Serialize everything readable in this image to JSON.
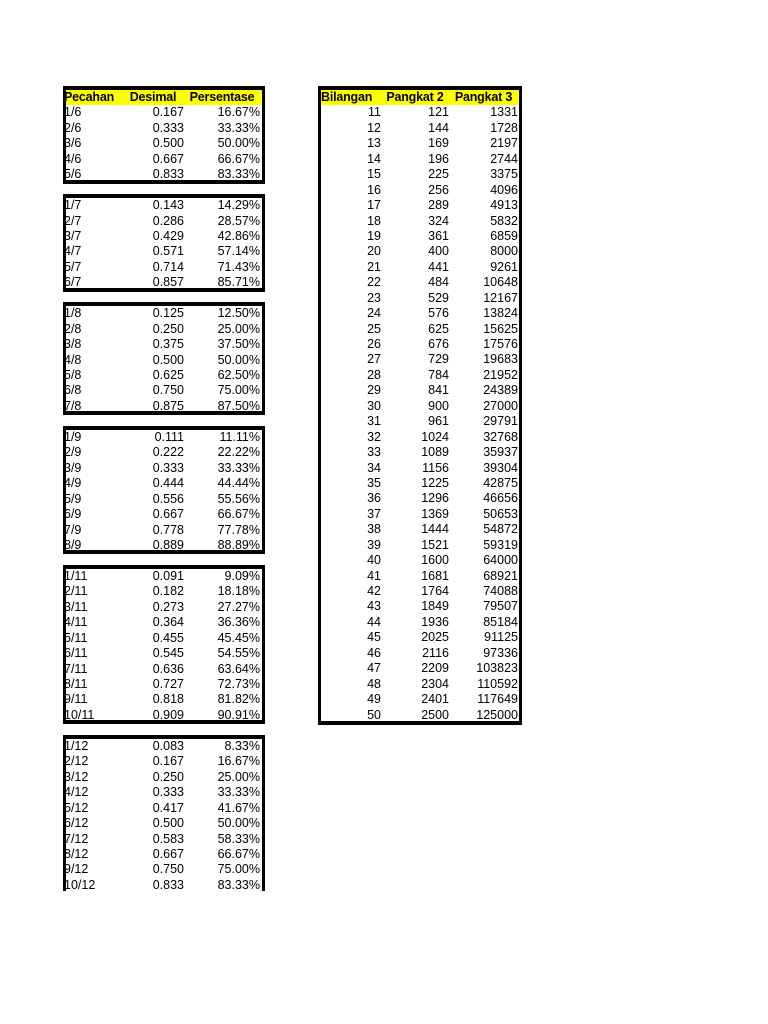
{
  "left_table": {
    "headers": [
      "Pecahan",
      "Desimal",
      "Persentase"
    ],
    "blocks": [
      {
        "rows": [
          [
            "1/6",
            "0.167",
            "16.67%"
          ],
          [
            "2/6",
            "0.333",
            "33.33%"
          ],
          [
            "3/6",
            "0.500",
            "50.00%"
          ],
          [
            "4/6",
            "0.667",
            "66.67%"
          ],
          [
            "5/6",
            "0.833",
            "83.33%"
          ]
        ]
      },
      {
        "rows": [
          [
            "1/7",
            "0.143",
            "14.29%"
          ],
          [
            "2/7",
            "0.286",
            "28.57%"
          ],
          [
            "3/7",
            "0.429",
            "42.86%"
          ],
          [
            "4/7",
            "0.571",
            "57.14%"
          ],
          [
            "5/7",
            "0.714",
            "71.43%"
          ],
          [
            "6/7",
            "0.857",
            "85.71%"
          ]
        ]
      },
      {
        "rows": [
          [
            "1/8",
            "0.125",
            "12.50%"
          ],
          [
            "2/8",
            "0.250",
            "25.00%"
          ],
          [
            "3/8",
            "0.375",
            "37.50%"
          ],
          [
            "4/8",
            "0.500",
            "50.00%"
          ],
          [
            "5/8",
            "0.625",
            "62.50%"
          ],
          [
            "6/8",
            "0.750",
            "75.00%"
          ],
          [
            "7/8",
            "0.875",
            "87.50%"
          ]
        ]
      },
      {
        "rows": [
          [
            "1/9",
            "0.111",
            "11.11%"
          ],
          [
            "2/9",
            "0.222",
            "22.22%"
          ],
          [
            "3/9",
            "0.333",
            "33.33%"
          ],
          [
            "4/9",
            "0.444",
            "44.44%"
          ],
          [
            "5/9",
            "0.556",
            "55.56%"
          ],
          [
            "6/9",
            "0.667",
            "66.67%"
          ],
          [
            "7/9",
            "0.778",
            "77.78%"
          ],
          [
            "8/9",
            "0.889",
            "88.89%"
          ]
        ]
      },
      {
        "rows": [
          [
            "1/11",
            "0.091",
            "9.09%"
          ],
          [
            "2/11",
            "0.182",
            "18.18%"
          ],
          [
            "3/11",
            "0.273",
            "27.27%"
          ],
          [
            "4/11",
            "0.364",
            "36.36%"
          ],
          [
            "5/11",
            "0.455",
            "45.45%"
          ],
          [
            "6/11",
            "0.545",
            "54.55%"
          ],
          [
            "7/11",
            "0.636",
            "63.64%"
          ],
          [
            "8/11",
            "0.727",
            "72.73%"
          ],
          [
            "9/11",
            "0.818",
            "81.82%"
          ],
          [
            "10/11",
            "0.909",
            "90.91%"
          ]
        ]
      },
      {
        "rows": [
          [
            "1/12",
            "0.083",
            "8.33%"
          ],
          [
            "2/12",
            "0.167",
            "16.67%"
          ],
          [
            "3/12",
            "0.250",
            "25.00%"
          ],
          [
            "4/12",
            "0.333",
            "33.33%"
          ],
          [
            "5/12",
            "0.417",
            "41.67%"
          ],
          [
            "6/12",
            "0.500",
            "50.00%"
          ],
          [
            "7/12",
            "0.583",
            "58.33%"
          ],
          [
            "8/12",
            "0.667",
            "66.67%"
          ],
          [
            "9/12",
            "0.750",
            "75.00%"
          ],
          [
            "10/12",
            "0.833",
            "83.33%"
          ]
        ]
      }
    ]
  },
  "right_table": {
    "headers": [
      "Bilangan",
      "Pangkat 2",
      "Pangkat 3"
    ],
    "rows": [
      [
        "11",
        "121",
        "1331"
      ],
      [
        "12",
        "144",
        "1728"
      ],
      [
        "13",
        "169",
        "2197"
      ],
      [
        "14",
        "196",
        "2744"
      ],
      [
        "15",
        "225",
        "3375"
      ],
      [
        "16",
        "256",
        "4096"
      ],
      [
        "17",
        "289",
        "4913"
      ],
      [
        "18",
        "324",
        "5832"
      ],
      [
        "19",
        "361",
        "6859"
      ],
      [
        "20",
        "400",
        "8000"
      ],
      [
        "21",
        "441",
        "9261"
      ],
      [
        "22",
        "484",
        "10648"
      ],
      [
        "23",
        "529",
        "12167"
      ],
      [
        "24",
        "576",
        "13824"
      ],
      [
        "25",
        "625",
        "15625"
      ],
      [
        "26",
        "676",
        "17576"
      ],
      [
        "27",
        "729",
        "19683"
      ],
      [
        "28",
        "784",
        "21952"
      ],
      [
        "29",
        "841",
        "24389"
      ],
      [
        "30",
        "900",
        "27000"
      ],
      [
        "31",
        "961",
        "29791"
      ],
      [
        "32",
        "1024",
        "32768"
      ],
      [
        "33",
        "1089",
        "35937"
      ],
      [
        "34",
        "1156",
        "39304"
      ],
      [
        "35",
        "1225",
        "42875"
      ],
      [
        "36",
        "1296",
        "46656"
      ],
      [
        "37",
        "1369",
        "50653"
      ],
      [
        "38",
        "1444",
        "54872"
      ],
      [
        "39",
        "1521",
        "59319"
      ],
      [
        "40",
        "1600",
        "64000"
      ],
      [
        "41",
        "1681",
        "68921"
      ],
      [
        "42",
        "1764",
        "74088"
      ],
      [
        "43",
        "1849",
        "79507"
      ],
      [
        "44",
        "1936",
        "85184"
      ],
      [
        "45",
        "2025",
        "91125"
      ],
      [
        "46",
        "2116",
        "97336"
      ],
      [
        "47",
        "2209",
        "103823"
      ],
      [
        "48",
        "2304",
        "110592"
      ],
      [
        "49",
        "2401",
        "117649"
      ],
      [
        "50",
        "2500",
        "125000"
      ]
    ]
  },
  "colors": {
    "header_bg": "#ffff00",
    "border": "#000000"
  }
}
